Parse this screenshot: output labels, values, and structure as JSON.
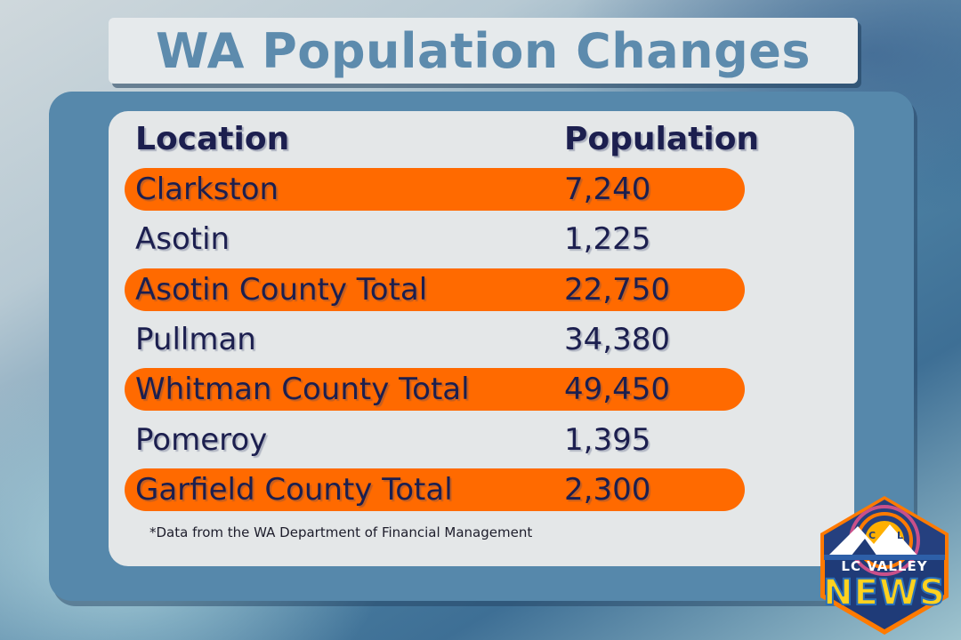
{
  "title": "WA Population Changes",
  "table": {
    "headers": {
      "location": "Location",
      "population": "Population"
    },
    "rows": [
      {
        "location": "Clarkston",
        "population": "7,240",
        "highlight": true
      },
      {
        "location": "Asotin",
        "population": "1,225",
        "highlight": false
      },
      {
        "location": "Asotin County Total",
        "population": "22,750",
        "highlight": true
      },
      {
        "location": "Pullman",
        "population": "34,380",
        "highlight": false
      },
      {
        "location": "Whitman County Total",
        "population": "49,450",
        "highlight": true
      },
      {
        "location": "Pomeroy",
        "population": "1,395",
        "highlight": false
      },
      {
        "location": "Garfield County Total",
        "population": "2,300",
        "highlight": true
      }
    ]
  },
  "footnote": "*Data from the WA Department of Financial Management",
  "logo": {
    "line1": "LC VALLEY",
    "line2": "NEWS",
    "letters": [
      "C",
      "L"
    ]
  },
  "colors": {
    "highlight": "#ff6a00",
    "text": "#1c1f4f",
    "title": "#5d8bad",
    "panel": "#5688ab",
    "card": "#e4e7e8"
  }
}
